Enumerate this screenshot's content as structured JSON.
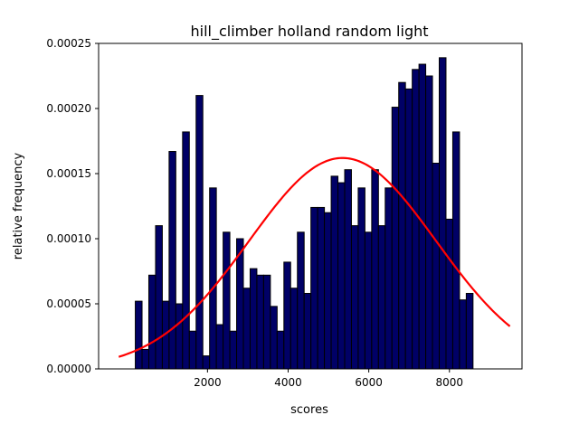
{
  "chart_data": {
    "type": "bar",
    "title": "hill_climber holland random light",
    "xlabel": "scores",
    "ylabel": "relative frequency",
    "xlim": [
      -700,
      9800
    ],
    "ylim": [
      0,
      0.00025
    ],
    "xticks": [
      2000,
      4000,
      6000,
      8000
    ],
    "xtick_labels": [
      "2000",
      "4000",
      "6000",
      "8000"
    ],
    "yticks": [
      0,
      5e-05,
      0.0001,
      0.00015,
      0.0002,
      0.00025
    ],
    "ytick_labels": [
      "0.00000",
      "0.00005",
      "0.00010",
      "0.00015",
      "0.00020",
      "0.00025"
    ],
    "grid": false,
    "bins": {
      "start": 210,
      "width": 167.5,
      "values": [
        5.2e-05,
        1.5e-05,
        7.2e-05,
        0.00011,
        5.2e-05,
        0.000167,
        5e-05,
        0.000182,
        2.9e-05,
        0.00021,
        1e-05,
        0.000139,
        3.4e-05,
        0.000105,
        2.9e-05,
        0.0001,
        6.2e-05,
        7.7e-05,
        7.2e-05,
        7.2e-05,
        4.8e-05,
        2.9e-05,
        8.2e-05,
        6.2e-05,
        0.000105,
        5.8e-05,
        0.000124,
        0.000124,
        0.00012,
        0.000148,
        0.000143,
        0.000153,
        0.00011,
        0.000139,
        0.000105,
        0.000153,
        0.00011,
        0.000139,
        0.000201,
        0.00022,
        0.000215,
        0.00023,
        0.000234,
        0.000225,
        0.000158,
        0.000239,
        0.000115,
        0.000182,
        5.3e-05,
        5.8e-05
      ],
      "face_color": "#000066",
      "edge_color": "#000000"
    },
    "fit_curve": {
      "type": "normal",
      "mean": 5350,
      "std": 2320,
      "peak": 0.000162,
      "x_range": [
        -200,
        9500
      ],
      "color": "#ff0000"
    }
  }
}
